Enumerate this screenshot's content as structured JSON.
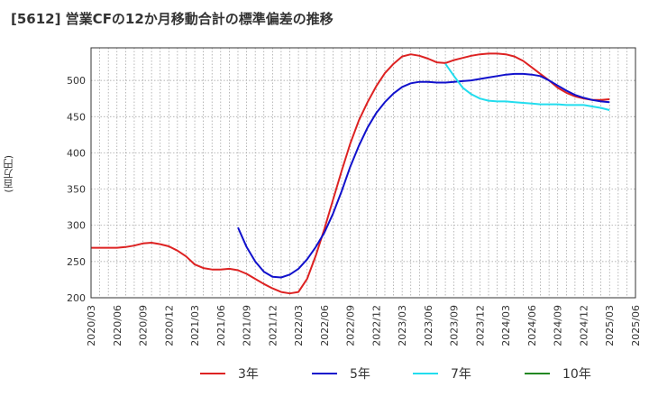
{
  "chart_data": {
    "type": "line",
    "title": "[5612]  営業CFの12か月移動合計の標準偏差の推移",
    "ylabel": "(百万円)",
    "xlabel": "",
    "ylim": [
      200,
      545
    ],
    "yticks": [
      200,
      250,
      300,
      350,
      400,
      450,
      500
    ],
    "xticks": [
      "2020/03",
      "2020/06",
      "2020/09",
      "2020/12",
      "2021/03",
      "2021/06",
      "2021/09",
      "2021/12",
      "2022/03",
      "2022/06",
      "2022/09",
      "2022/12",
      "2023/03",
      "2023/06",
      "2023/09",
      "2023/12",
      "2024/03",
      "2024/06",
      "2024/09",
      "2024/12",
      "2025/03",
      "2025/06"
    ],
    "grid": true,
    "legend_position": "bottom",
    "series": [
      {
        "name": "3年",
        "color": "#dd2222",
        "x": [
          "2020/03",
          "2020/04",
          "2020/05",
          "2020/06",
          "2020/07",
          "2020/08",
          "2020/09",
          "2020/10",
          "2020/11",
          "2020/12",
          "2021/01",
          "2021/02",
          "2021/03",
          "2021/04",
          "2021/05",
          "2021/06",
          "2021/07",
          "2021/08",
          "2021/09",
          "2021/10",
          "2021/11",
          "2021/12",
          "2022/01",
          "2022/02",
          "2022/03",
          "2022/04",
          "2022/05",
          "2022/06",
          "2022/07",
          "2022/08",
          "2022/09",
          "2022/10",
          "2022/11",
          "2022/12",
          "2023/01",
          "2023/02",
          "2023/03",
          "2023/04",
          "2023/05",
          "2023/06",
          "2023/07",
          "2023/08",
          "2023/09",
          "2023/10",
          "2023/11",
          "2023/12",
          "2024/01",
          "2024/02",
          "2024/03",
          "2024/04",
          "2024/05",
          "2024/06",
          "2024/07",
          "2024/08",
          "2024/09",
          "2024/10",
          "2024/11",
          "2024/12",
          "2025/01",
          "2025/02",
          "2025/03"
        ],
        "values": [
          269,
          269,
          269,
          269,
          270,
          272,
          275,
          276,
          274,
          271,
          265,
          257,
          246,
          241,
          239,
          239,
          240,
          238,
          233,
          226,
          219,
          213,
          208,
          206,
          208,
          226,
          258,
          295,
          335,
          375,
          413,
          445,
          470,
          492,
          510,
          523,
          533,
          536,
          534,
          530,
          525,
          524,
          528,
          531,
          534,
          536,
          537,
          537,
          536,
          533,
          527,
          518,
          509,
          500,
          490,
          483,
          478,
          475,
          473,
          473,
          474
        ]
      },
      {
        "name": "5年",
        "color": "#1111cc",
        "x": [
          "2021/08",
          "2021/09",
          "2021/10",
          "2021/11",
          "2021/12",
          "2022/01",
          "2022/02",
          "2022/03",
          "2022/04",
          "2022/05",
          "2022/06",
          "2022/07",
          "2022/08",
          "2022/09",
          "2022/10",
          "2022/11",
          "2022/12",
          "2023/01",
          "2023/02",
          "2023/03",
          "2023/04",
          "2023/05",
          "2023/06",
          "2023/07",
          "2023/08",
          "2023/09",
          "2023/10",
          "2023/11",
          "2023/12",
          "2024/01",
          "2024/02",
          "2024/03",
          "2024/04",
          "2024/05",
          "2024/06",
          "2024/07",
          "2024/08",
          "2024/09",
          "2024/10",
          "2024/11",
          "2024/12",
          "2025/01",
          "2025/02",
          "2025/03"
        ],
        "values": [
          297,
          270,
          250,
          236,
          229,
          228,
          232,
          240,
          253,
          270,
          290,
          316,
          347,
          381,
          410,
          435,
          455,
          470,
          482,
          491,
          496,
          498,
          498,
          497,
          497,
          498,
          499,
          500,
          502,
          504,
          506,
          508,
          509,
          509,
          508,
          506,
          500,
          493,
          486,
          480,
          476,
          473,
          471,
          470
        ]
      },
      {
        "name": "7年",
        "color": "#22ddee",
        "x": [
          "2023/08",
          "2023/09",
          "2023/10",
          "2023/11",
          "2023/12",
          "2024/01",
          "2024/02",
          "2024/03",
          "2024/04",
          "2024/05",
          "2024/06",
          "2024/07",
          "2024/08",
          "2024/09",
          "2024/10",
          "2024/11",
          "2024/12",
          "2025/01",
          "2025/02",
          "2025/03"
        ],
        "values": [
          523,
          506,
          490,
          481,
          475,
          472,
          471,
          471,
          470,
          469,
          468,
          467,
          467,
          467,
          466,
          466,
          466,
          464,
          462,
          459
        ]
      },
      {
        "name": "10年",
        "color": "#228822",
        "x": [],
        "values": []
      }
    ]
  }
}
